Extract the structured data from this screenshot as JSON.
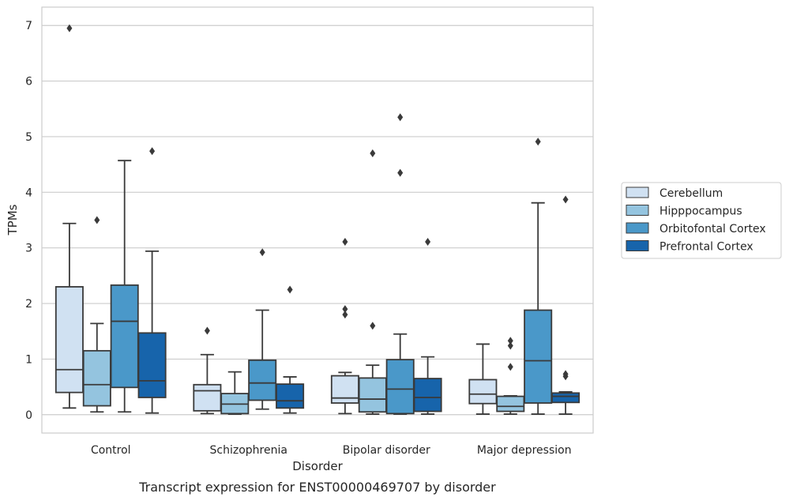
{
  "chart_data": {
    "type": "box",
    "caption": "Transcript expression for ENST00000469707 by disorder",
    "xlabel": "Disorder",
    "ylabel": "TPMs",
    "ylim": [
      -0.33,
      7.33
    ],
    "yticks": [
      0,
      1,
      2,
      3,
      4,
      5,
      6,
      7
    ],
    "grid": "horizontal",
    "legend_position": "right",
    "categories": [
      "Control",
      "Schizophrenia",
      "Bipolar disorder",
      "Major depression"
    ],
    "series": [
      {
        "name": "Cerebellum",
        "color": "#d0e1f2",
        "boxes": [
          {
            "whisker_low": 0.12,
            "q1": 0.4,
            "median": 0.81,
            "q3": 2.3,
            "whisker_high": 3.44,
            "outliers": [
              6.95
            ]
          },
          {
            "whisker_low": 0.02,
            "q1": 0.07,
            "median": 0.43,
            "q3": 0.54,
            "whisker_high": 1.08,
            "outliers": [
              1.51
            ]
          },
          {
            "whisker_low": 0.02,
            "q1": 0.21,
            "median": 0.3,
            "q3": 0.7,
            "whisker_high": 0.76,
            "outliers": [
              1.8,
              1.9,
              3.11
            ]
          },
          {
            "whisker_low": 0.01,
            "q1": 0.2,
            "median": 0.37,
            "q3": 0.63,
            "whisker_high": 1.27,
            "outliers": []
          }
        ]
      },
      {
        "name": "Hipppocampus",
        "color": "#94c4df",
        "boxes": [
          {
            "whisker_low": 0.05,
            "q1": 0.16,
            "median": 0.54,
            "q3": 1.15,
            "whisker_high": 1.64,
            "outliers": [
              3.5
            ]
          },
          {
            "whisker_low": 0.01,
            "q1": 0.02,
            "median": 0.19,
            "q3": 0.38,
            "whisker_high": 0.77,
            "outliers": []
          },
          {
            "whisker_low": 0.01,
            "q1": 0.05,
            "median": 0.28,
            "q3": 0.66,
            "whisker_high": 0.89,
            "outliers": [
              1.6,
              4.7
            ]
          },
          {
            "whisker_low": 0.01,
            "q1": 0.06,
            "median": 0.15,
            "q3": 0.33,
            "whisker_high": 0.34,
            "outliers": [
              0.86,
              1.24,
              1.33
            ]
          }
        ]
      },
      {
        "name": "Orbitofontal Cortex",
        "color": "#4a98c9",
        "boxes": [
          {
            "whisker_low": 0.05,
            "q1": 0.49,
            "median": 1.68,
            "q3": 2.33,
            "whisker_high": 4.57,
            "outliers": []
          },
          {
            "whisker_low": 0.1,
            "q1": 0.26,
            "median": 0.57,
            "q3": 0.98,
            "whisker_high": 1.88,
            "outliers": [
              2.92
            ]
          },
          {
            "whisker_low": 0.01,
            "q1": 0.02,
            "median": 0.46,
            "q3": 0.99,
            "whisker_high": 1.45,
            "outliers": [
              4.35,
              5.35
            ]
          },
          {
            "whisker_low": 0.01,
            "q1": 0.21,
            "median": 0.97,
            "q3": 1.88,
            "whisker_high": 3.81,
            "outliers": [
              4.91
            ]
          }
        ]
      },
      {
        "name": "Prefrontal Cortex",
        "color": "#1764ab",
        "boxes": [
          {
            "whisker_low": 0.03,
            "q1": 0.31,
            "median": 0.61,
            "q3": 1.47,
            "whisker_high": 2.94,
            "outliers": [
              4.74
            ]
          },
          {
            "whisker_low": 0.03,
            "q1": 0.12,
            "median": 0.25,
            "q3": 0.55,
            "whisker_high": 0.68,
            "outliers": [
              2.25
            ]
          },
          {
            "whisker_low": 0.01,
            "q1": 0.06,
            "median": 0.31,
            "q3": 0.65,
            "whisker_high": 1.04,
            "outliers": [
              3.11
            ]
          },
          {
            "whisker_low": 0.01,
            "q1": 0.22,
            "median": 0.33,
            "q3": 0.39,
            "whisker_high": 0.41,
            "outliers": [
              0.69,
              0.73,
              3.87
            ]
          }
        ]
      }
    ]
  }
}
